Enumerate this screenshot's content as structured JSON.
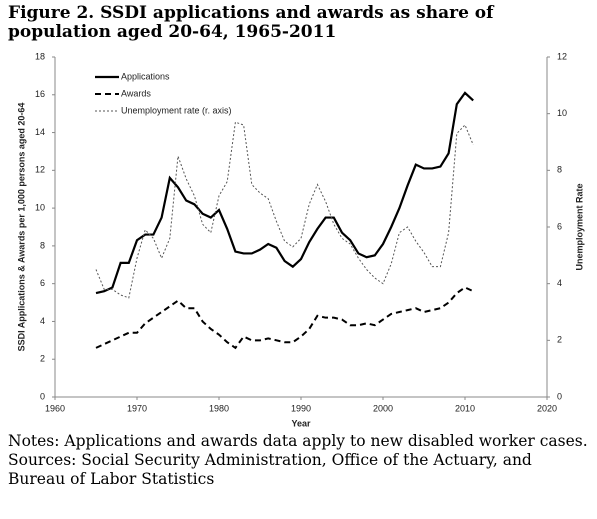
{
  "chart_data": {
    "type": "line",
    "title": "Figure 2.  SSDI applications and awards as share of population aged 20-64, 1965-2011",
    "x_label": "Year",
    "y_label": "SSDI Applications & Awards per 1,000 persons aged 20-64",
    "y2_label": "Unemployment Rate",
    "x": [
      1965,
      1966,
      1967,
      1968,
      1969,
      1970,
      1971,
      1972,
      1973,
      1974,
      1975,
      1976,
      1977,
      1978,
      1979,
      1980,
      1981,
      1982,
      1983,
      1984,
      1985,
      1986,
      1987,
      1988,
      1989,
      1990,
      1991,
      1992,
      1993,
      1994,
      1995,
      1996,
      1997,
      1998,
      1999,
      2000,
      2001,
      2002,
      2003,
      2004,
      2005,
      2006,
      2007,
      2008,
      2009,
      2010,
      2011
    ],
    "series": [
      {
        "name": "Applications",
        "color": "#000000",
        "linestyle": "solid",
        "values": [
          5.5,
          5.6,
          5.8,
          7.1,
          7.1,
          8.3,
          8.6,
          8.6,
          9.5,
          11.6,
          11.1,
          10.4,
          10.2,
          9.7,
          9.5,
          9.9,
          8.9,
          7.7,
          7.6,
          7.6,
          7.8,
          8.1,
          7.9,
          7.2,
          6.9,
          7.3,
          8.2,
          8.9,
          9.5,
          9.5,
          8.7,
          8.3,
          7.6,
          7.4,
          7.5,
          8.1,
          9.0,
          10.0,
          11.2,
          12.3,
          12.1,
          12.1,
          12.2,
          12.9,
          15.5,
          16.1,
          15.7
        ]
      },
      {
        "name": "Awards",
        "color": "#000000",
        "linestyle": "dashed",
        "values": [
          2.6,
          2.8,
          3.0,
          3.2,
          3.4,
          3.4,
          3.9,
          4.2,
          4.5,
          4.8,
          5.1,
          4.7,
          4.7,
          4.0,
          3.6,
          3.3,
          2.9,
          2.6,
          3.2,
          3.0,
          3.0,
          3.1,
          3.0,
          2.9,
          2.9,
          3.2,
          3.6,
          4.3,
          4.2,
          4.2,
          4.1,
          3.8,
          3.8,
          3.9,
          3.8,
          4.1,
          4.4,
          4.5,
          4.6,
          4.7,
          4.5,
          4.6,
          4.7,
          5.0,
          5.5,
          5.8,
          5.6
        ]
      },
      {
        "name": "Unemployment rate (r. axis)",
        "color": "#555555",
        "linestyle": "dotted",
        "axis": "y2",
        "values": [
          4.5,
          3.8,
          3.8,
          3.6,
          3.5,
          4.9,
          5.9,
          5.6,
          4.9,
          5.6,
          8.5,
          7.7,
          7.1,
          6.1,
          5.8,
          7.1,
          7.6,
          9.7,
          9.6,
          7.5,
          7.2,
          7.0,
          6.2,
          5.5,
          5.3,
          5.6,
          6.8,
          7.5,
          6.9,
          6.1,
          5.6,
          5.4,
          4.9,
          4.5,
          4.2,
          4.0,
          4.7,
          5.8,
          6.0,
          5.5,
          5.1,
          4.6,
          4.6,
          5.8,
          9.3,
          9.6,
          8.9
        ]
      }
    ],
    "xlim": [
      1960,
      2020
    ],
    "xticks": [
      1960,
      1970,
      1980,
      1990,
      2000,
      2010,
      2020
    ],
    "ylim": [
      0,
      18
    ],
    "yticks": [
      0,
      2,
      4,
      6,
      8,
      10,
      12,
      14,
      16,
      18
    ],
    "y2lim": [
      0,
      12
    ],
    "y2ticks": [
      0,
      2,
      4,
      6,
      8,
      10,
      12
    ],
    "grid": false,
    "legend": "upper left"
  },
  "notes": [
    "Notes:  Applications and awards data apply to new disabled worker cases.",
    "Sources:  Social Security Administration, Office of the Actuary, and Bureau of Labor Statistics"
  ]
}
